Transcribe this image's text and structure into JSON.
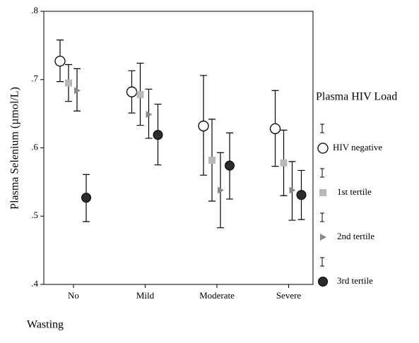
{
  "chart_data": {
    "type": "errorbar",
    "y_label": "Plasma Selenium (µmol/L)",
    "x_label": "Wasting",
    "legend_title": "Plasma HIV Load",
    "categories": [
      "No",
      "Mild",
      "Moderate",
      "Severe"
    ],
    "ylim": [
      0.4,
      0.8
    ],
    "yticks": [
      {
        "value": 0.4,
        "label": ".4"
      },
      {
        "value": 0.5,
        "label": ".5"
      },
      {
        "value": 0.6,
        "label": ".6"
      },
      {
        "value": 0.7,
        "label": ".7"
      },
      {
        "value": 0.8,
        "label": ".8"
      }
    ],
    "legend": "right",
    "series": [
      {
        "name": "HIV negative",
        "marker": "circle",
        "color": "#ffffff",
        "values": [
          0.727,
          0.682,
          0.632,
          0.628
        ],
        "lower": [
          0.697,
          0.651,
          0.56,
          0.573
        ],
        "upper": [
          0.758,
          0.713,
          0.706,
          0.684
        ]
      },
      {
        "name": "1st tertile",
        "marker": "square",
        "color": "#b8b8b8",
        "values": [
          0.695,
          0.678,
          0.582,
          0.578
        ],
        "lower": [
          0.668,
          0.633,
          0.522,
          0.53
        ],
        "upper": [
          0.722,
          0.724,
          0.642,
          0.626
        ]
      },
      {
        "name": "2nd tertile",
        "marker": "triangle",
        "color": "#8a8a8a",
        "values": [
          0.684,
          0.649,
          0.538,
          0.538
        ],
        "lower": [
          0.654,
          0.614,
          0.483,
          0.494
        ],
        "upper": [
          0.716,
          0.686,
          0.593,
          0.58
        ]
      },
      {
        "name": "3rd tertile",
        "marker": "dark-circle",
        "color": "#2b2b2b",
        "values": [
          0.527,
          0.619,
          0.574,
          0.531
        ],
        "lower": [
          0.492,
          0.575,
          0.525,
          0.495
        ],
        "upper": [
          0.561,
          0.664,
          0.622,
          0.567
        ]
      }
    ]
  }
}
